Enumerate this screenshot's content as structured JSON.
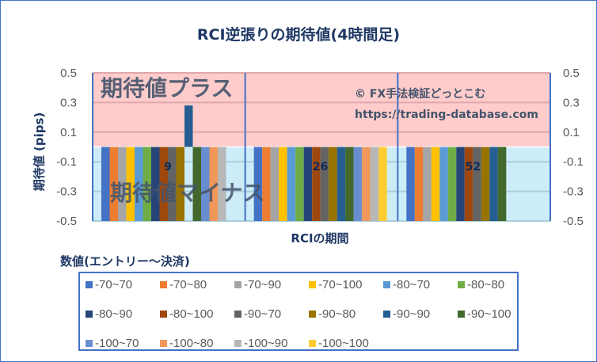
{
  "title": "RCI逆張りの期待値(4時間足)",
  "watermark": {
    "line1": "© FX手法検証どっとこむ",
    "line2": "https://trading-database.com"
  },
  "zones": {
    "plus": "期待値プラス",
    "minus": "期待値マイナス"
  },
  "colors": {
    "plus_zone": "#ffcccc",
    "minus_zone": "#ccecf8",
    "axis_title": "#1f3864"
  },
  "chart_data": {
    "type": "bar",
    "title": "RCI逆張りの期待値(4時間足)",
    "xlabel": "RCIの期間",
    "ylabel": "期待値 (pips)",
    "ylim": [
      -0.5,
      0.5
    ],
    "yticks": [
      "0.5",
      "0.3",
      "0.1",
      "-0.1",
      "-0.3",
      "-0.5"
    ],
    "ytick_values": [
      0.5,
      0.3,
      0.1,
      -0.1,
      -0.3,
      -0.5
    ],
    "grid": true,
    "legend_title": "数値(エントリー～決済)",
    "legend_position": "bottom",
    "categories": [
      "9",
      "26",
      "52"
    ],
    "note": "negative bars extend below -0.5 (clipped at axis minimum)",
    "series": [
      {
        "name": "-70~70",
        "color": "#4472c4",
        "values": [
          -0.6,
          -0.6,
          -0.6
        ]
      },
      {
        "name": "-70~80",
        "color": "#ed7d31",
        "values": [
          -0.6,
          -0.6,
          -0.6
        ]
      },
      {
        "name": "-70~90",
        "color": "#a5a5a5",
        "values": [
          -0.6,
          -0.6,
          -0.6
        ]
      },
      {
        "name": "-70~100",
        "color": "#ffc000",
        "values": [
          -0.6,
          -0.6,
          -0.6
        ]
      },
      {
        "name": "-80~70",
        "color": "#5b9bd5",
        "values": [
          -0.6,
          -0.6,
          -0.6
        ]
      },
      {
        "name": "-80~80",
        "color": "#70ad47",
        "values": [
          -0.6,
          -0.6,
          -0.6
        ]
      },
      {
        "name": "-80~90",
        "color": "#264478",
        "values": [
          -0.6,
          -0.6,
          -0.6
        ]
      },
      {
        "name": "-80~100",
        "color": "#9e480e",
        "values": [
          -0.6,
          -0.6,
          -0.6
        ]
      },
      {
        "name": "-90~70",
        "color": "#636363",
        "values": [
          -0.6,
          -0.6,
          -0.6
        ]
      },
      {
        "name": "-90~80",
        "color": "#997300",
        "values": [
          -0.6,
          -0.6,
          -0.6
        ]
      },
      {
        "name": "-90~90",
        "color": "#255e91",
        "values": [
          0.28,
          -0.6,
          -0.6
        ]
      },
      {
        "name": "-90~100",
        "color": "#43682b",
        "values": [
          -0.6,
          -0.6,
          -0.6
        ]
      },
      {
        "name": "-100~70",
        "color": "#698ed0",
        "values": [
          -0.6,
          -0.6,
          null
        ]
      },
      {
        "name": "-100~80",
        "color": "#f1975a",
        "values": [
          -0.6,
          -0.6,
          null
        ]
      },
      {
        "name": "-100~90",
        "color": "#b7b7b7",
        "values": [
          -0.6,
          -0.6,
          null
        ]
      },
      {
        "name": "-100~100",
        "color": "#ffcd33",
        "values": [
          null,
          -0.6,
          null
        ]
      }
    ]
  }
}
